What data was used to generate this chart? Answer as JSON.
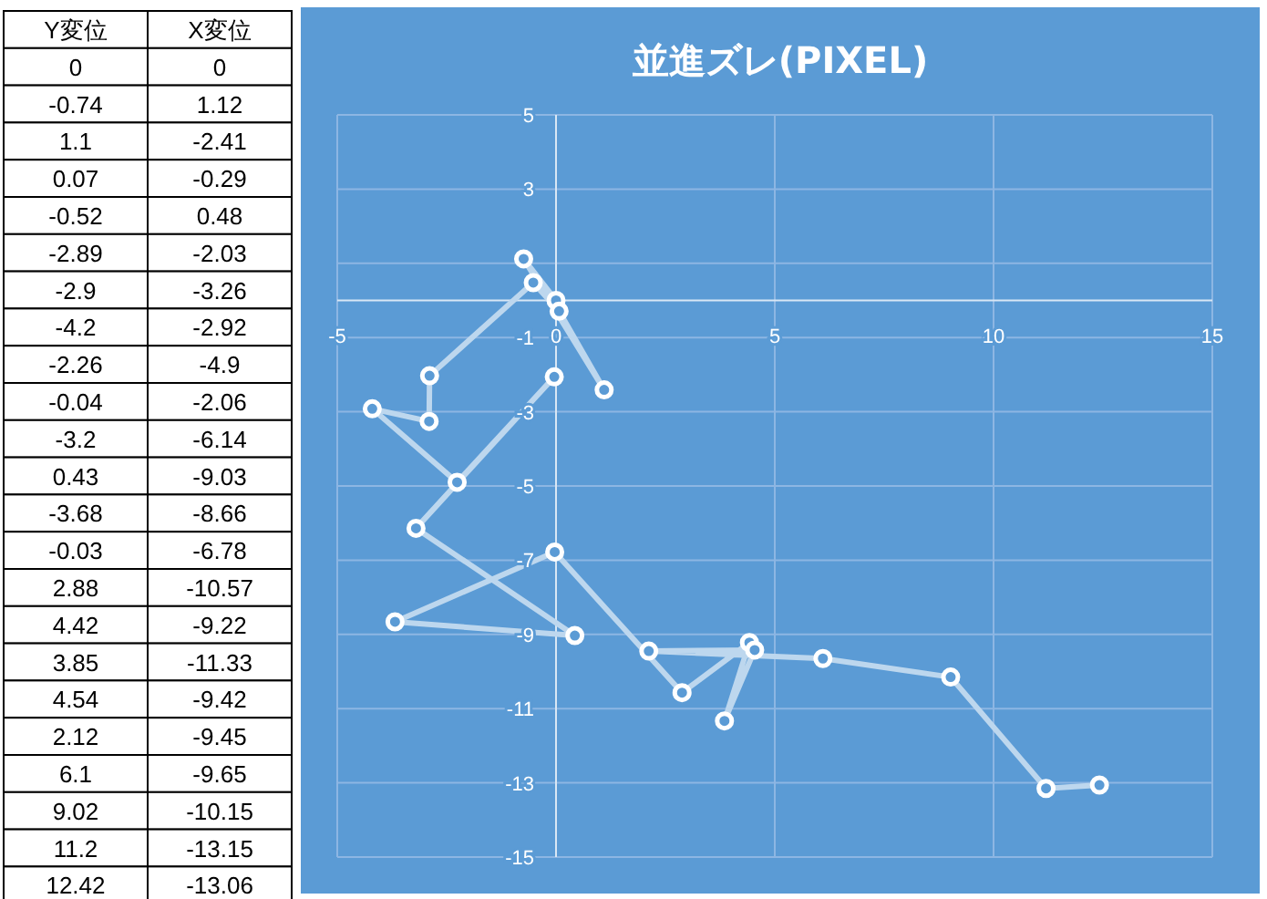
{
  "chart_data": [
    {
      "type": "other",
      "annotations": [
        "Y変位",
        "X変位",
        "0",
        "0",
        "-0.74",
        "1.12",
        "1.1",
        "-2.41",
        "0.07",
        "-0.29",
        "-0.52",
        "0.48",
        "-2.89",
        "-2.03",
        "-2.9",
        "-3.26",
        "-4.2",
        "-2.92",
        "-2.26",
        "-4.9",
        "-0.04",
        "-2.06",
        "-3.2",
        "-6.14",
        "0.43",
        "-9.03",
        "-3.68",
        "-8.66",
        "-0.03",
        "-6.78",
        "2.88",
        "-10.57",
        "4.42",
        "-9.22",
        "3.85",
        "-11.33",
        "4.54",
        "-9.42",
        "2.12",
        "-9.45",
        "6.1",
        "-9.65",
        "9.02",
        "-10.15",
        "11.2",
        "-13.15",
        "12.42",
        "-13.06"
      ]
    },
    {
      "type": "line",
      "title": "並進ズレ(PIXEL)",
      "marker": "circle",
      "line_style": "solid",
      "grid": true,
      "xlim": [
        -5,
        15
      ],
      "xticks": [
        -5,
        0,
        5,
        10,
        15
      ],
      "ylim": [
        -15,
        5
      ],
      "yticks": [
        -15,
        -13,
        -11,
        -9,
        -7,
        -5,
        -3,
        -1,
        {
          "value": 1,
          "label": null
        },
        3,
        5
      ],
      "x": [
        0,
        -0.74,
        1.1,
        0.07,
        -0.52,
        -2.89,
        -2.9,
        -4.2,
        -2.26,
        -0.04,
        -3.2,
        0.43,
        -3.68,
        -0.03,
        2.88,
        4.42,
        3.85,
        4.54,
        2.12,
        6.1,
        9.02,
        11.2,
        12.42
      ],
      "series": [
        {
          "color": "#bdd7ee",
          "values": [
            0,
            1.12,
            -2.41,
            -0.29,
            0.48,
            -2.03,
            -3.26,
            -2.92,
            -4.9,
            -2.06,
            -6.14,
            -9.03,
            -8.66,
            -6.78,
            -10.57,
            -9.22,
            -11.33,
            -9.42,
            -9.45,
            -9.65,
            -10.15,
            -13.15,
            -13.06
          ]
        }
      ]
    }
  ]
}
